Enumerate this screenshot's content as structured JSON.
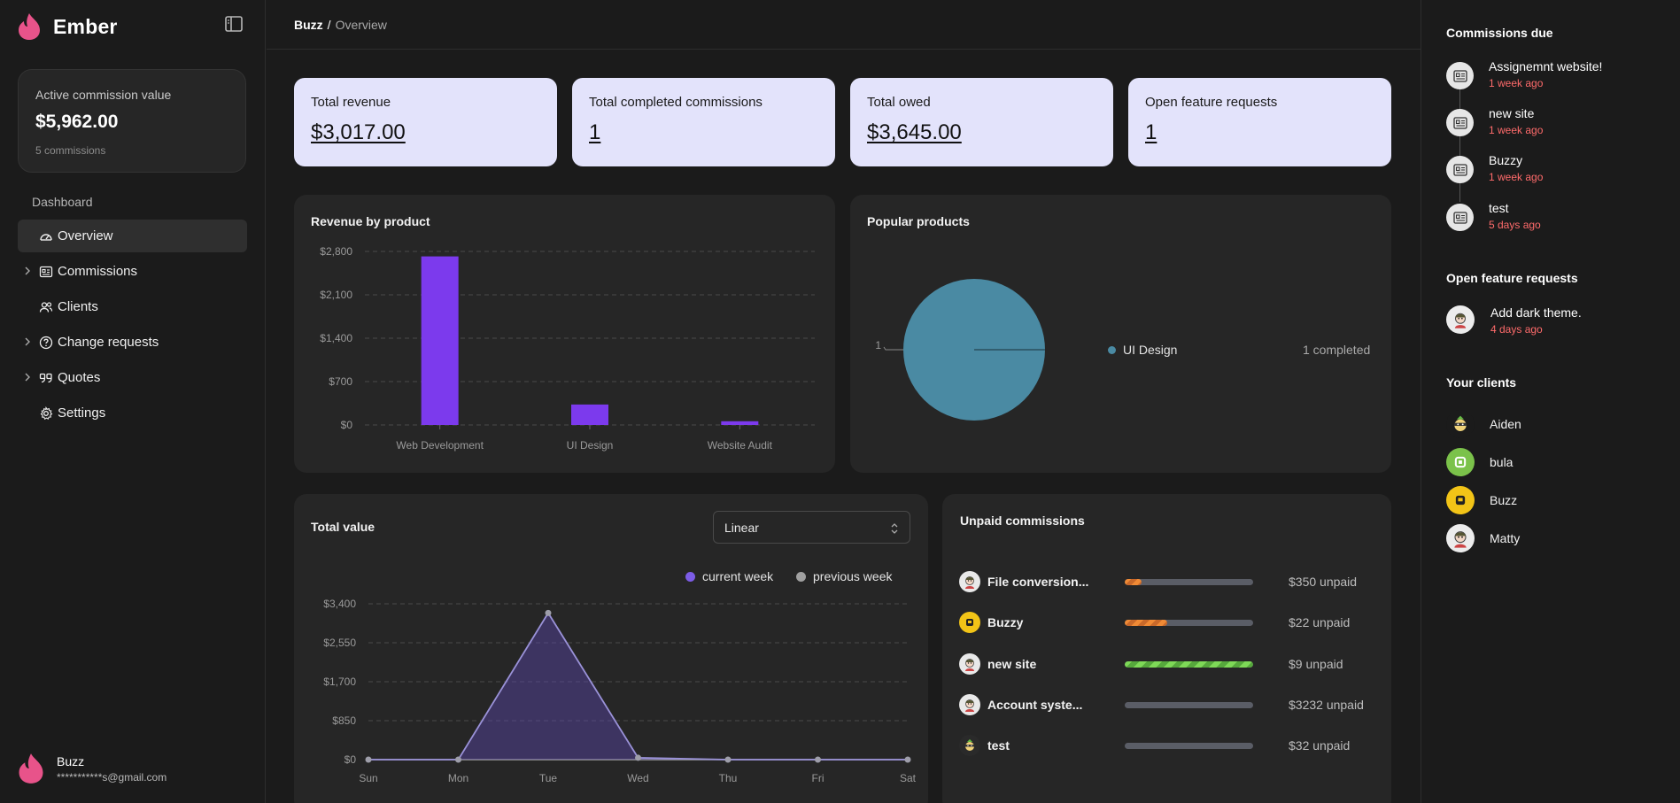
{
  "app": {
    "name": "Ember",
    "accent": "#e8538a"
  },
  "sidebar": {
    "active_card": {
      "label": "Active commission value",
      "value": "$5,962.00",
      "sub": "5 commissions"
    },
    "section_label": "Dashboard",
    "items": [
      {
        "label": "Overview",
        "icon": "gauge-icon",
        "active": true,
        "expandable": false
      },
      {
        "label": "Commissions",
        "icon": "id-card-icon",
        "active": false,
        "expandable": true
      },
      {
        "label": "Clients",
        "icon": "users-icon",
        "active": false,
        "expandable": false
      },
      {
        "label": "Change requests",
        "icon": "question-circle-icon",
        "active": false,
        "expandable": true
      },
      {
        "label": "Quotes",
        "icon": "quote-icon",
        "active": false,
        "expandable": true
      },
      {
        "label": "Settings",
        "icon": "gear-icon",
        "active": false,
        "expandable": false
      }
    ],
    "user": {
      "name": "Buzz",
      "email": "***********s@gmail.com"
    }
  },
  "breadcrumb": {
    "root": "Buzz",
    "separator": "/",
    "current": "Overview"
  },
  "stats": [
    {
      "label": "Total revenue",
      "value": "$3,017.00"
    },
    {
      "label": "Total completed commissions",
      "value": "1"
    },
    {
      "label": "Total owed",
      "value": "$3,645.00"
    },
    {
      "label": "Open feature requests",
      "value": "1"
    }
  ],
  "revenue_panel": {
    "title": "Revenue by product"
  },
  "popular_panel": {
    "title": "Popular products",
    "pie_label": "1",
    "legend_name": "UI Design",
    "legend_value": "1 completed"
  },
  "total_value_panel": {
    "title": "Total value",
    "scale_select": "Linear",
    "legend": [
      "current week",
      "previous week"
    ]
  },
  "chart_data": [
    {
      "type": "bar",
      "title": "Revenue by product",
      "categories": [
        "Web Development",
        "UI Design",
        "Website Audit"
      ],
      "values": [
        2720,
        330,
        60
      ],
      "ylim": [
        0,
        2800
      ],
      "yticks": [
        "$0",
        "$700",
        "$1,400",
        "$2,100",
        "$2,800"
      ],
      "ytick_values": [
        0,
        700,
        1400,
        2100,
        2800
      ],
      "color": "#7c3aed",
      "grid": true
    },
    {
      "type": "pie",
      "title": "Popular products",
      "slices": [
        {
          "name": "UI Design",
          "value": 1
        }
      ],
      "color": "#4a8aa3"
    },
    {
      "type": "area",
      "title": "Total value",
      "categories": [
        "Sun",
        "Mon",
        "Tue",
        "Wed",
        "Thu",
        "Fri",
        "Sat"
      ],
      "series": [
        {
          "name": "current week",
          "values": [
            0,
            0,
            3200,
            40,
            0,
            0,
            0
          ],
          "color": "#7c5ce6"
        },
        {
          "name": "previous week",
          "values": [
            0,
            0,
            0,
            0,
            0,
            0,
            0
          ],
          "color": "#a0a0a0"
        }
      ],
      "ylim": [
        0,
        3400
      ],
      "yticks": [
        "$0",
        "$850",
        "$1,700",
        "$2,550",
        "$3,400"
      ],
      "ytick_values": [
        0,
        850,
        1700,
        2550,
        3400
      ],
      "legend": "top-right",
      "grid": true
    }
  ],
  "unpaid_panel": {
    "title": "Unpaid commissions",
    "rows": [
      {
        "name": "File conversion...",
        "avatar": "cartoon-avatar-icon",
        "progress": 0.13,
        "color": "orange",
        "amount": "$350 unpaid"
      },
      {
        "name": "Buzzy",
        "avatar": "yellow-robot-avatar-icon",
        "progress": 0.33,
        "color": "orange",
        "amount": "$22 unpaid"
      },
      {
        "name": "new site",
        "avatar": "cartoon-avatar-icon",
        "progress": 1.0,
        "color": "green",
        "amount": "$9 unpaid"
      },
      {
        "name": "Account syste...",
        "avatar": "cartoon-avatar-icon",
        "progress": 0,
        "color": "orange",
        "amount": "$3232 unpaid"
      },
      {
        "name": "test",
        "avatar": "ninja-avatar-icon",
        "progress": 0,
        "color": "orange",
        "amount": "$32 unpaid"
      }
    ]
  },
  "right_panel": {
    "due_title": "Commissions due",
    "due": [
      {
        "name": "Assignemnt website!",
        "time": "1 week ago"
      },
      {
        "name": "new site",
        "time": "1 week ago"
      },
      {
        "name": "Buzzy",
        "time": "1 week ago"
      },
      {
        "name": "test",
        "time": "5 days ago"
      }
    ],
    "feature_title": "Open feature requests",
    "features": [
      {
        "name": "Add dark theme.",
        "time": "4 days ago"
      }
    ],
    "clients_title": "Your clients",
    "clients": [
      {
        "name": "Aiden",
        "avatar": "ninja-avatar-icon"
      },
      {
        "name": "bula",
        "avatar": "green-robot-avatar-icon"
      },
      {
        "name": "Buzz",
        "avatar": "yellow-robot-avatar-icon"
      },
      {
        "name": "Matty",
        "avatar": "cartoon-avatar-icon"
      }
    ]
  }
}
